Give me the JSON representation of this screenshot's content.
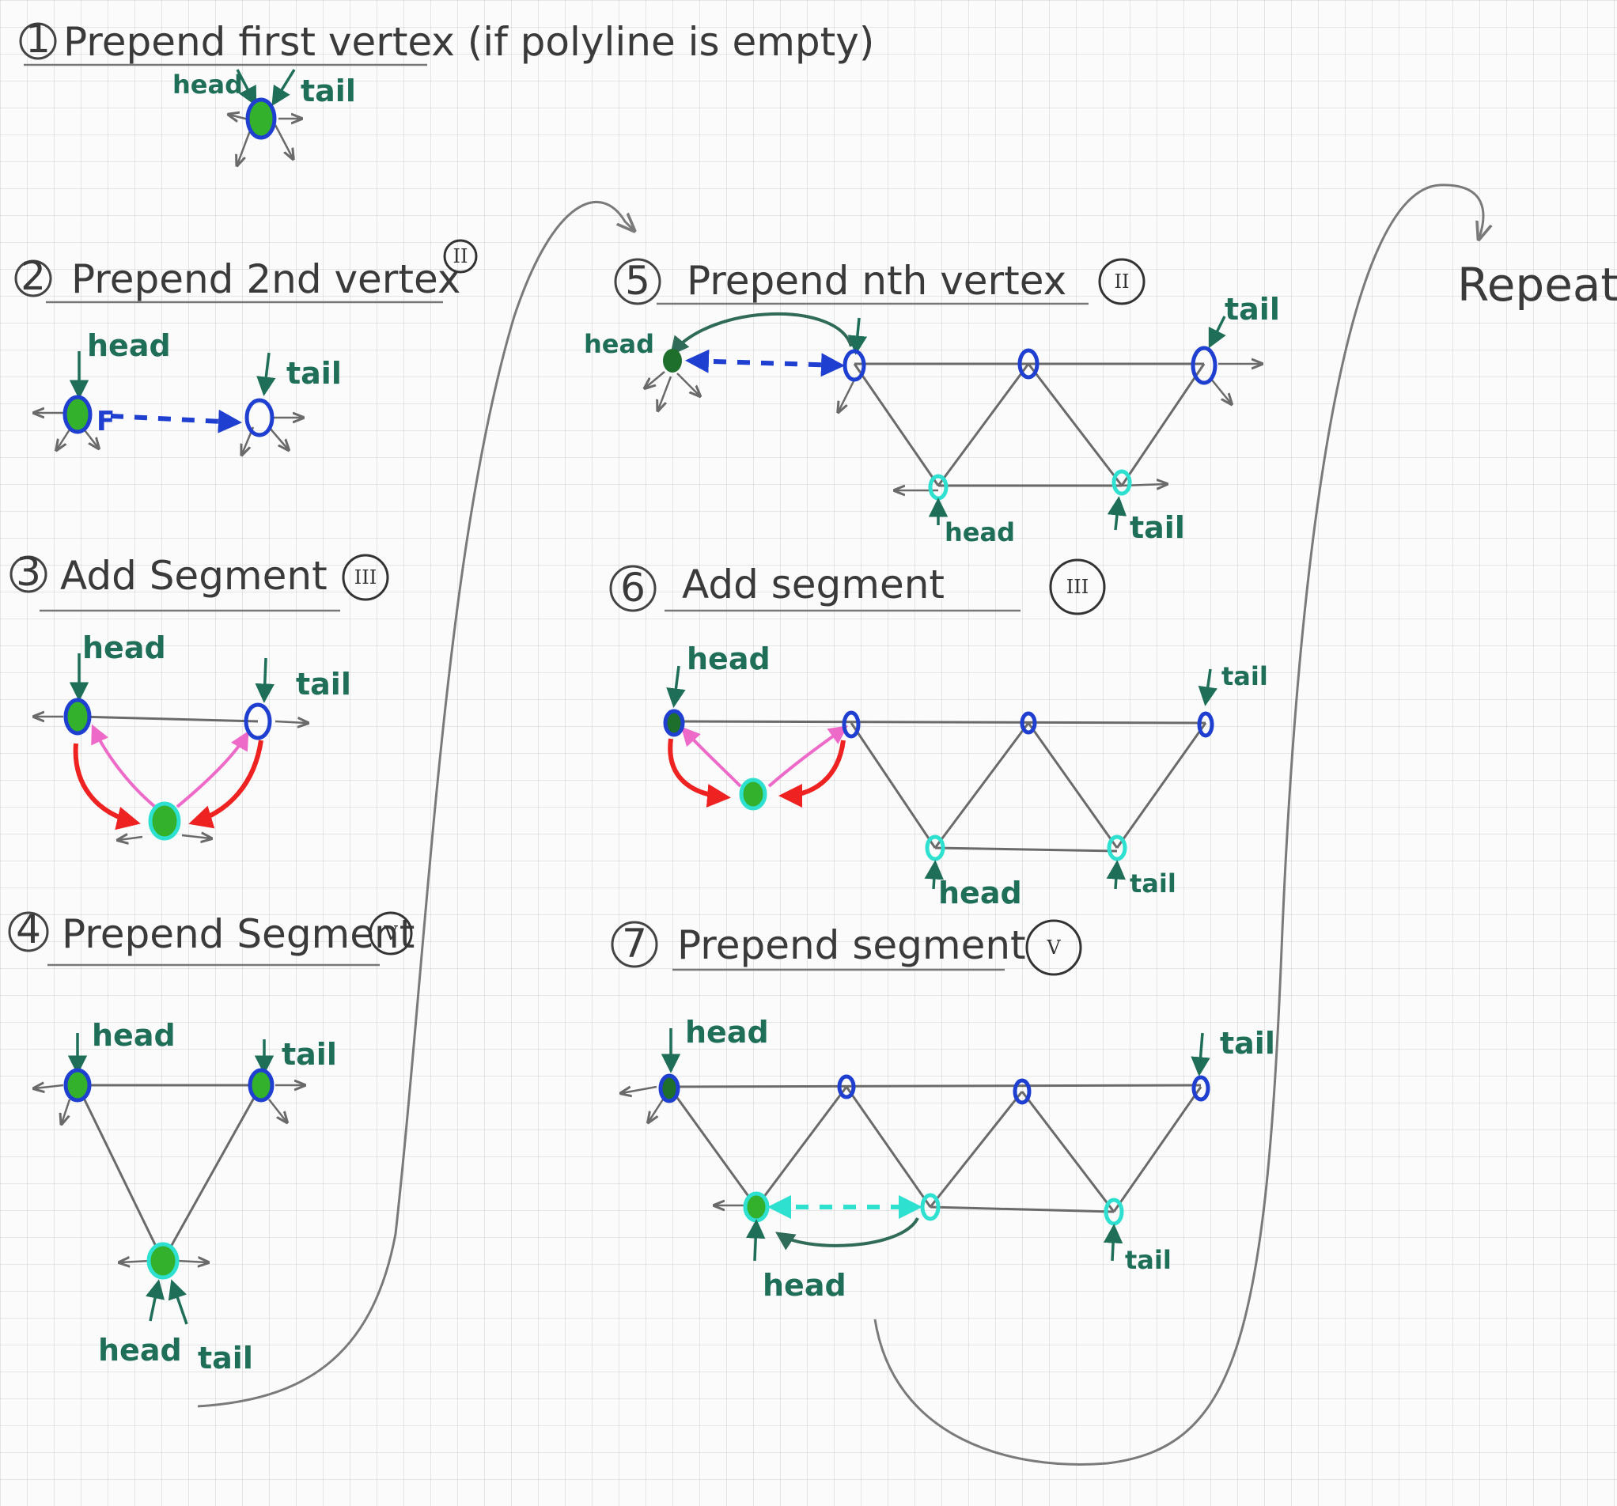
{
  "steps": [
    {
      "num": "1",
      "title": "Prepend first vertex (if polyline is empty)",
      "roman": ""
    },
    {
      "num": "2",
      "title": "Prepend 2nd vertex",
      "roman": "II"
    },
    {
      "num": "3",
      "title": "Add Segment",
      "roman": "III"
    },
    {
      "num": "4",
      "title": "Prepend Segment",
      "roman": "V"
    },
    {
      "num": "5",
      "title": "Prepend nth vertex",
      "roman": "II"
    },
    {
      "num": "6",
      "title": "Add segment",
      "roman": "III"
    },
    {
      "num": "7",
      "title": "Prepend segment",
      "roman": "V"
    }
  ],
  "labels": {
    "head": "head",
    "tail": "tail"
  },
  "repeat": "Repeat",
  "colors": {
    "ink": "#3a3a3a",
    "label": "#1e6e58",
    "blue": "#1e3fd0",
    "cyan": "#2ee0d0",
    "green": "#33b02c",
    "red": "#ef2222",
    "pink": "#ee6ac8"
  }
}
